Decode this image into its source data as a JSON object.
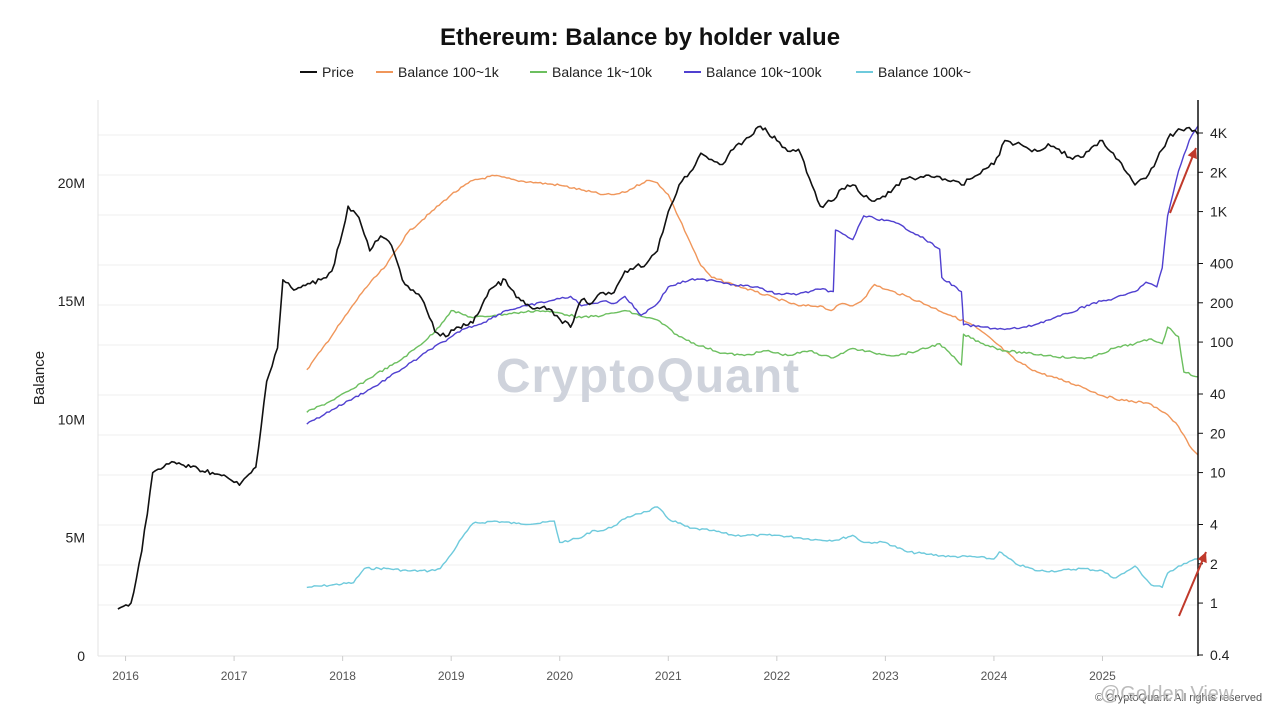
{
  "chart_data": {
    "type": "line",
    "title": "Ethereum: Balance by holder value",
    "ylabel": "Balance",
    "y_left_ticks": [
      "0",
      "5M",
      "10M",
      "15M",
      "20M"
    ],
    "y_left_range": [
      0,
      23500000
    ],
    "y_right_ticks": [
      "0.4",
      "1",
      "2",
      "4",
      "10",
      "20",
      "40",
      "100",
      "200",
      "400",
      "1K",
      "2K",
      "4K"
    ],
    "y_right_scale": "log",
    "x_ticks": [
      "2016",
      "2017",
      "2018",
      "2019",
      "2020",
      "2021",
      "2022",
      "2023",
      "2024",
      "2025"
    ],
    "legend_position": "top-center",
    "grid": true,
    "series": [
      {
        "name": "Price",
        "axis": "right",
        "color": "#111111",
        "x": [
          2015.93,
          2016.05,
          2016.15,
          2016.25,
          2016.35,
          2016.45,
          2016.6,
          2016.8,
          2016.95,
          2017.05,
          2017.2,
          2017.3,
          2017.4,
          2017.45,
          2017.55,
          2017.7,
          2017.8,
          2017.9,
          2018.0,
          2018.05,
          2018.15,
          2018.25,
          2018.35,
          2018.45,
          2018.55,
          2018.65,
          2018.75,
          2018.85,
          2018.95,
          2019.05,
          2019.2,
          2019.35,
          2019.5,
          2019.6,
          2019.75,
          2019.9,
          2020.0,
          2020.1,
          2020.2,
          2020.3,
          2020.4,
          2020.5,
          2020.6,
          2020.7,
          2020.8,
          2020.9,
          2021.0,
          2021.1,
          2021.2,
          2021.3,
          2021.4,
          2021.5,
          2021.6,
          2021.7,
          2021.85,
          2022.0,
          2022.1,
          2022.2,
          2022.3,
          2022.4,
          2022.5,
          2022.6,
          2022.7,
          2022.8,
          2022.9,
          2023.0,
          2023.1,
          2023.2,
          2023.3,
          2023.4,
          2023.5,
          2023.6,
          2023.7,
          2023.8,
          2023.9,
          2024.0,
          2024.1,
          2024.2,
          2024.3,
          2024.4,
          2024.5,
          2024.6,
          2024.7,
          2024.8,
          2024.9,
          2025.0,
          2025.1,
          2025.2,
          2025.3,
          2025.4,
          2025.5,
          2025.6,
          2025.7,
          2025.8,
          2025.88
        ],
        "y": [
          0.9,
          1.0,
          2.5,
          10,
          11,
          12,
          11,
          10,
          9,
          8,
          11,
          50,
          90,
          300,
          250,
          280,
          300,
          350,
          700,
          1100,
          900,
          500,
          650,
          550,
          300,
          250,
          200,
          120,
          110,
          130,
          140,
          250,
          300,
          220,
          180,
          180,
          150,
          130,
          210,
          200,
          240,
          240,
          350,
          380,
          400,
          500,
          1000,
          1600,
          2000,
          2800,
          2500,
          2300,
          3000,
          3500,
          4500,
          3500,
          2900,
          3000,
          1800,
          1100,
          1200,
          1500,
          1600,
          1300,
          1200,
          1300,
          1600,
          1800,
          1800,
          1900,
          1850,
          1700,
          1600,
          1800,
          2100,
          2300,
          3500,
          3300,
          3100,
          2900,
          3300,
          3000,
          2600,
          2600,
          3100,
          3500,
          2800,
          2100,
          1600,
          1800,
          2500,
          3600,
          4300,
          4400,
          3900
        ]
      },
      {
        "name": "Balance 100~1k",
        "axis": "left",
        "color": "#f0965a",
        "x": [
          2017.67,
          2017.8,
          2018.0,
          2018.2,
          2018.4,
          2018.6,
          2018.8,
          2019.0,
          2019.2,
          2019.4,
          2019.6,
          2019.8,
          2020.0,
          2020.2,
          2020.4,
          2020.5,
          2020.6,
          2020.8,
          2020.9,
          2021.0,
          2021.1,
          2021.2,
          2021.3,
          2021.4,
          2021.6,
          2021.8,
          2022.0,
          2022.2,
          2022.4,
          2022.5,
          2022.6,
          2022.7,
          2022.8,
          2022.9,
          2023.0,
          2023.2,
          2023.4,
          2023.6,
          2023.8,
          2024.0,
          2024.2,
          2024.4,
          2024.6,
          2024.8,
          2025.0,
          2025.2,
          2025.4,
          2025.5,
          2025.6,
          2025.7,
          2025.8,
          2025.88
        ],
        "y": [
          12100000,
          12900000,
          14200000,
          15500000,
          16500000,
          17900000,
          18700000,
          19500000,
          20100000,
          20300000,
          20100000,
          20000000,
          19900000,
          19700000,
          19500000,
          19500000,
          19600000,
          20100000,
          20000000,
          19500000,
          18500000,
          17500000,
          16500000,
          16000000,
          15700000,
          15400000,
          15100000,
          14800000,
          14800000,
          14600000,
          14900000,
          14800000,
          15100000,
          15700000,
          15500000,
          15200000,
          14800000,
          14400000,
          14000000,
          13300000,
          12500000,
          12000000,
          11700000,
          11400000,
          11000000,
          10800000,
          10700000,
          10500000,
          10200000,
          9700000,
          8900000,
          8500000
        ]
      },
      {
        "name": "Balance 1k~10k",
        "axis": "left",
        "color": "#6cbf5f",
        "x": [
          2017.67,
          2017.9,
          2018.1,
          2018.3,
          2018.5,
          2018.7,
          2018.85,
          2019.0,
          2019.2,
          2019.4,
          2019.6,
          2019.8,
          2020.0,
          2020.2,
          2020.4,
          2020.5,
          2020.6,
          2020.8,
          2020.9,
          2021.1,
          2021.3,
          2021.5,
          2021.7,
          2021.9,
          2022.1,
          2022.3,
          2022.5,
          2022.7,
          2022.9,
          2023.1,
          2023.3,
          2023.5,
          2023.7,
          2023.72,
          2023.9,
          2024.1,
          2024.3,
          2024.5,
          2024.7,
          2024.9,
          2025.1,
          2025.3,
          2025.45,
          2025.55,
          2025.6,
          2025.7,
          2025.75,
          2025.88
        ],
        "y": [
          10300000,
          10800000,
          11300000,
          11900000,
          12400000,
          13100000,
          13700000,
          14600000,
          14300000,
          14400000,
          14500000,
          14600000,
          14500000,
          14300000,
          14400000,
          14500000,
          14600000,
          14300000,
          14200000,
          13500000,
          13100000,
          12800000,
          12700000,
          12900000,
          12700000,
          12900000,
          12600000,
          13000000,
          12800000,
          12700000,
          12900000,
          13200000,
          12300000,
          13600000,
          13200000,
          12900000,
          12800000,
          12700000,
          12600000,
          12600000,
          13000000,
          13200000,
          13400000,
          13200000,
          13900000,
          13500000,
          12000000,
          11800000
        ]
      },
      {
        "name": "Balance 10k~100k",
        "axis": "left",
        "color": "#5040d0",
        "x": [
          2017.67,
          2017.9,
          2018.1,
          2018.3,
          2018.5,
          2018.7,
          2018.85,
          2018.95,
          2019.1,
          2019.3,
          2019.5,
          2019.7,
          2019.9,
          2020.0,
          2020.1,
          2020.2,
          2020.3,
          2020.4,
          2020.5,
          2020.6,
          2020.75,
          2020.9,
          2021.0,
          2021.2,
          2021.4,
          2021.6,
          2021.8,
          2022.0,
          2022.2,
          2022.4,
          2022.52,
          2022.54,
          2022.7,
          2022.8,
          2022.9,
          2023.1,
          2023.3,
          2023.5,
          2023.52,
          2023.7,
          2023.72,
          2023.9,
          2024.1,
          2024.3,
          2024.5,
          2024.7,
          2024.9,
          2025.1,
          2025.3,
          2025.4,
          2025.5,
          2025.55,
          2025.6,
          2025.7,
          2025.8,
          2025.88
        ],
        "y": [
          9800000,
          10400000,
          10900000,
          11400000,
          12000000,
          12600000,
          13100000,
          13300000,
          13800000,
          14100000,
          14600000,
          14800000,
          15000000,
          15100000,
          15200000,
          14800000,
          14900000,
          15000000,
          14900000,
          15200000,
          14400000,
          14900000,
          15600000,
          15900000,
          15900000,
          15700000,
          15600000,
          15300000,
          15300000,
          15500000,
          15400000,
          18000000,
          17600000,
          18600000,
          18500000,
          18300000,
          17800000,
          17200000,
          16000000,
          15400000,
          14000000,
          13900000,
          13800000,
          13900000,
          14200000,
          14500000,
          14900000,
          15100000,
          15400000,
          15800000,
          15600000,
          16400000,
          18600000,
          20500000,
          21800000,
          22400000
        ]
      },
      {
        "name": "Balance 100k~",
        "axis": "left",
        "color": "#6ecadc",
        "x": [
          2017.67,
          2017.9,
          2018.1,
          2018.2,
          2018.4,
          2018.6,
          2018.8,
          2018.9,
          2019.0,
          2019.1,
          2019.2,
          2019.4,
          2019.6,
          2019.8,
          2019.95,
          2020.0,
          2020.1,
          2020.2,
          2020.3,
          2020.4,
          2020.5,
          2020.6,
          2020.7,
          2020.8,
          2020.9,
          2021.0,
          2021.2,
          2021.4,
          2021.6,
          2021.8,
          2022.0,
          2022.2,
          2022.4,
          2022.55,
          2022.7,
          2022.8,
          2022.9,
          2023.0,
          2023.2,
          2023.4,
          2023.6,
          2023.8,
          2024.0,
          2024.05,
          2024.2,
          2024.4,
          2024.6,
          2024.8,
          2025.0,
          2025.1,
          2025.2,
          2025.3,
          2025.45,
          2025.55,
          2025.6,
          2025.7,
          2025.8,
          2025.88
        ],
        "y": [
          2900000,
          3000000,
          3100000,
          3700000,
          3700000,
          3600000,
          3600000,
          3700000,
          4300000,
          5000000,
          5600000,
          5700000,
          5600000,
          5600000,
          5700000,
          4800000,
          4900000,
          5000000,
          5300000,
          5300000,
          5500000,
          5800000,
          6000000,
          6100000,
          6300000,
          5800000,
          5400000,
          5300000,
          5100000,
          5100000,
          5100000,
          5000000,
          4900000,
          4900000,
          5100000,
          4800000,
          4800000,
          4800000,
          4400000,
          4300000,
          4200000,
          4200000,
          4100000,
          4400000,
          3900000,
          3600000,
          3600000,
          3700000,
          3600000,
          3300000,
          3500000,
          3800000,
          3000000,
          2900000,
          3500000,
          3800000,
          4000000,
          4100000
        ]
      }
    ]
  },
  "watermark": {
    "main": "CryptoQuant",
    "sub": "© CryptoQuant. All rights reserved",
    "corner": "@Golden View"
  }
}
